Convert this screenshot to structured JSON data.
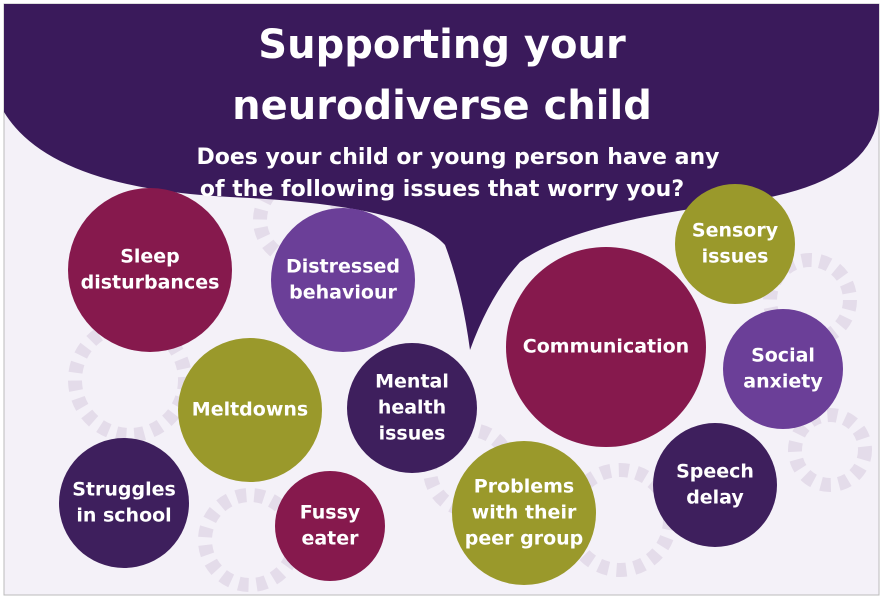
{
  "header": {
    "title": [
      "Supporting your",
      "neurodiverse child"
    ],
    "subtitle": [
      "Does your child or young person have any",
      "of the following issues that worry you?"
    ]
  },
  "bubbles": [
    {
      "lines": [
        "Sleep",
        "disturbances"
      ]
    },
    {
      "lines": [
        "Distressed",
        "behaviour"
      ]
    },
    {
      "lines": [
        "Meltdowns"
      ]
    },
    {
      "lines": [
        "Mental",
        "health",
        "issues"
      ]
    },
    {
      "lines": [
        "Struggles",
        "in school"
      ]
    },
    {
      "lines": [
        "Fussy",
        "eater"
      ]
    },
    {
      "lines": [
        "Problems",
        "with their",
        "peer group"
      ]
    },
    {
      "lines": [
        "Communication"
      ]
    },
    {
      "lines": [
        "Sensory",
        "issues"
      ]
    },
    {
      "lines": [
        "Social",
        "anxiety"
      ]
    },
    {
      "lines": [
        "Speech",
        "delay"
      ]
    }
  ]
}
